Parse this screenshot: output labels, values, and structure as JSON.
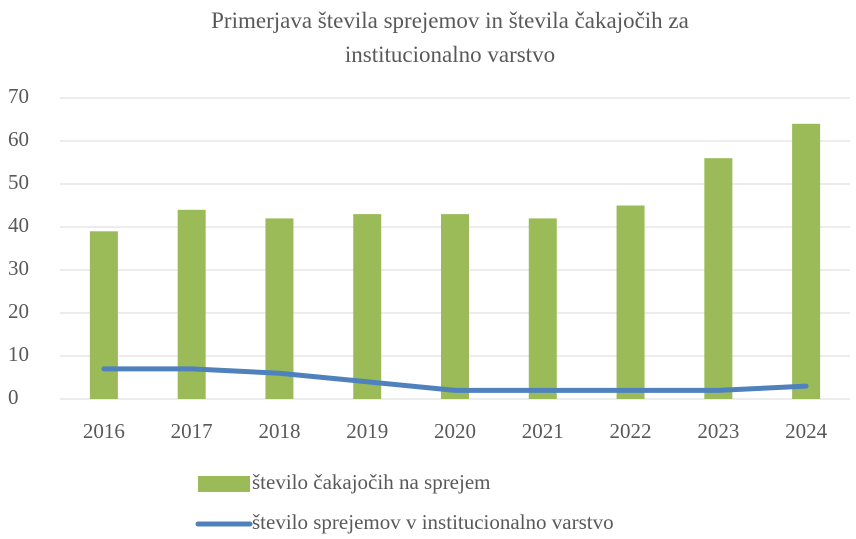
{
  "chart_data": {
    "type": "bar",
    "title": "Primerjava števila sprejemov in števila čakajočih za institucionalno varstvo",
    "categories": [
      "2016",
      "2017",
      "2018",
      "2019",
      "2020",
      "2021",
      "2022",
      "2023",
      "2024"
    ],
    "series": [
      {
        "name": "število čakajočih na sprejem",
        "type": "bar",
        "color": "#9bbb59",
        "values": [
          39,
          44,
          42,
          43,
          43,
          42,
          45,
          56,
          64
        ]
      },
      {
        "name": "število sprejemov v institucionalno varstvo",
        "type": "line",
        "color": "#4f81bd",
        "values": [
          7,
          7,
          6,
          4,
          2,
          2,
          2,
          2,
          3
        ]
      }
    ],
    "ylim": [
      0,
      70
    ],
    "yticks": [
      0,
      10,
      20,
      30,
      40,
      50,
      60,
      70
    ],
    "grid": true
  }
}
